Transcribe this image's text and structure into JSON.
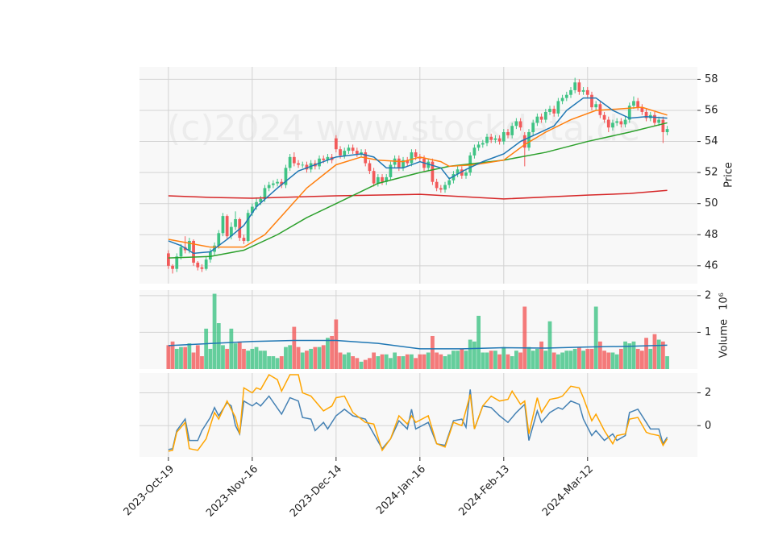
{
  "chart_data": {
    "type": "candlestick",
    "watermark": "(c)2024 www.stockdata.de",
    "ylabel": "Price",
    "xlim": [
      -6.9,
      126.2
    ],
    "xticks": [
      {
        "value": 0,
        "label": "2023-Oct-19"
      },
      {
        "value": 20,
        "label": "2023-Nov-16"
      },
      {
        "value": 40,
        "label": "2023-Dec-14"
      },
      {
        "value": 60,
        "label": "2024-Jan-16"
      },
      {
        "value": 80,
        "label": "2024-Feb-13"
      },
      {
        "value": 100,
        "label": "2024-Mar-12"
      }
    ],
    "ylim": [
      44.85,
      58.8
    ],
    "yticks": [
      46,
      48,
      50,
      52,
      54,
      56,
      58
    ],
    "grid": true,
    "up_color": "#3fc384",
    "down_color": "#f25a5a",
    "open": [
      46.8,
      46.0,
      45.8,
      46.6,
      47.2,
      47.0,
      47.6,
      46.2,
      45.9,
      45.8,
      46.4,
      46.9,
      47.3,
      48.1,
      49.2,
      47.9,
      48.5,
      49.0,
      47.8,
      47.6,
      49.4,
      49.8,
      50.1,
      50.3,
      51.0,
      51.2,
      51.3,
      51.4,
      51.2,
      52.3,
      53.0,
      52.6,
      52.5,
      52.5,
      52.2,
      52.6,
      52.4,
      52.9,
      52.8,
      53.0,
      54.2,
      53.5,
      53.1,
      53.4,
      53.6,
      53.4,
      53.2,
      53.3,
      52.6,
      52.1,
      51.3,
      51.7,
      51.4,
      51.7,
      52.5,
      52.9,
      52.3,
      52.8,
      52.6,
      53.3,
      53.0,
      52.9,
      52.3,
      52.7,
      51.4,
      51.0,
      50.9,
      51.2,
      51.5,
      51.9,
      52.2,
      51.8,
      52.0,
      53.1,
      53.6,
      53.8,
      53.9,
      54.3,
      54.1,
      54.2,
      54.0,
      54.6,
      54.4,
      55.0,
      55.3,
      54.4,
      53.6,
      54.6,
      55.2,
      55.6,
      55.4,
      55.9,
      56.1,
      55.8,
      56.6,
      56.8,
      57.0,
      57.3,
      57.8,
      57.2,
      57.3,
      57.0,
      56.2,
      56.4,
      55.7,
      55.4,
      54.9,
      55.2,
      55.3,
      55.1,
      55.4,
      56.3,
      56.6,
      56.2,
      55.9,
      55.5,
      55.7,
      55.2,
      55.4,
      54.6
    ],
    "high": [
      47.0,
      46.1,
      46.8,
      47.4,
      47.9,
      47.8,
      47.7,
      46.3,
      46.1,
      46.6,
      47.1,
      47.5,
      48.3,
      49.4,
      49.3,
      48.8,
      49.5,
      49.1,
      48.0,
      49.6,
      50.0,
      50.4,
      50.5,
      51.2,
      51.4,
      51.5,
      51.6,
      51.6,
      52.5,
      53.2,
      53.3,
      52.8,
      52.7,
      52.7,
      52.8,
      52.8,
      53.1,
      53.1,
      53.2,
      53.2,
      54.4,
      53.7,
      53.6,
      53.8,
      53.8,
      53.6,
      53.5,
      53.5,
      52.8,
      52.3,
      51.9,
      51.9,
      51.9,
      52.7,
      53.1,
      53.1,
      53.0,
      53.0,
      53.5,
      53.5,
      53.2,
      53.1,
      52.9,
      52.9,
      51.6,
      51.2,
      51.4,
      51.7,
      52.1,
      52.4,
      52.4,
      52.2,
      53.3,
      53.8,
      54.0,
      54.1,
      54.5,
      54.5,
      54.4,
      54.4,
      54.8,
      54.8,
      55.2,
      55.5,
      55.5,
      54.6,
      54.8,
      55.4,
      55.8,
      55.8,
      56.1,
      56.3,
      56.3,
      56.8,
      57.0,
      57.2,
      57.5,
      58.1,
      58.0,
      57.5,
      57.5,
      57.2,
      56.6,
      56.6,
      55.9,
      55.6,
      55.4,
      55.5,
      55.5,
      55.6,
      56.5,
      56.9,
      56.8,
      56.4,
      56.1,
      55.9,
      55.9,
      55.6,
      55.6,
      55.0
    ],
    "low": [
      45.8,
      45.5,
      45.6,
      46.4,
      46.8,
      46.8,
      46.0,
      45.7,
      45.6,
      45.7,
      46.2,
      46.7,
      47.1,
      47.9,
      47.7,
      47.7,
      48.3,
      47.6,
      47.4,
      47.5,
      49.2,
      49.6,
      49.9,
      50.1,
      50.8,
      51.0,
      51.1,
      51.0,
      51.0,
      52.1,
      52.4,
      52.3,
      52.3,
      52.0,
      52.0,
      52.2,
      52.2,
      52.6,
      52.6,
      52.6,
      53.3,
      52.9,
      52.9,
      53.2,
      53.2,
      53.0,
      53.0,
      52.4,
      51.9,
      51.1,
      51.1,
      51.2,
      51.2,
      51.5,
      52.3,
      52.1,
      52.1,
      52.4,
      52.4,
      52.8,
      52.7,
      52.1,
      52.1,
      51.2,
      50.8,
      50.7,
      50.7,
      51.0,
      51.3,
      51.7,
      51.6,
      51.6,
      51.8,
      52.9,
      53.4,
      53.6,
      53.7,
      53.9,
      53.9,
      53.8,
      53.8,
      54.2,
      54.2,
      54.8,
      54.7,
      52.4,
      53.4,
      54.4,
      55.0,
      55.2,
      55.2,
      55.7,
      55.6,
      55.6,
      56.4,
      56.6,
      56.8,
      57.1,
      57.0,
      57.0,
      56.8,
      56.0,
      56.0,
      55.5,
      55.2,
      54.6,
      54.7,
      55.0,
      54.9,
      54.9,
      55.2,
      56.1,
      56.0,
      55.7,
      55.3,
      55.3,
      55.0,
      55.0,
      53.9,
      54.4
    ],
    "close": [
      46.0,
      45.8,
      46.6,
      47.2,
      47.0,
      47.6,
      46.2,
      45.9,
      45.8,
      46.4,
      46.9,
      47.3,
      48.1,
      49.2,
      47.9,
      48.5,
      49.0,
      47.8,
      47.6,
      49.4,
      49.8,
      50.1,
      50.3,
      51.0,
      51.2,
      51.3,
      51.4,
      51.2,
      52.3,
      53.0,
      52.6,
      52.5,
      52.5,
      52.2,
      52.6,
      52.4,
      52.9,
      52.8,
      53.0,
      52.8,
      53.5,
      53.1,
      53.4,
      53.6,
      53.4,
      53.2,
      53.3,
      52.6,
      52.1,
      51.3,
      51.7,
      51.4,
      51.7,
      52.5,
      52.9,
      52.3,
      52.8,
      52.6,
      53.3,
      53.0,
      52.9,
      52.3,
      52.7,
      51.4,
      51.0,
      50.9,
      51.2,
      51.5,
      51.9,
      52.2,
      51.8,
      52.0,
      53.1,
      53.6,
      53.8,
      53.9,
      54.3,
      54.1,
      54.2,
      54.0,
      54.6,
      54.4,
      55.0,
      55.3,
      54.9,
      53.6,
      54.6,
      55.2,
      55.6,
      55.4,
      55.9,
      56.1,
      55.8,
      56.6,
      56.8,
      57.0,
      57.3,
      57.8,
      57.2,
      57.3,
      57.0,
      56.2,
      56.4,
      55.7,
      55.4,
      54.9,
      55.2,
      55.3,
      55.1,
      55.4,
      56.3,
      56.6,
      56.2,
      55.9,
      55.5,
      55.7,
      55.2,
      55.4,
      54.6,
      54.8
    ],
    "series": [
      {
        "color": "#d62728",
        "x": [
          0,
          10,
          20,
          40,
          60,
          80,
          100,
          110,
          119
        ],
        "values": [
          50.5,
          50.4,
          50.35,
          50.5,
          50.6,
          50.3,
          50.55,
          50.65,
          50.85
        ]
      },
      {
        "color": "#2ca02c",
        "x": [
          0,
          10,
          18,
          26,
          33,
          40,
          50,
          60,
          67,
          80,
          90,
          100,
          110,
          119
        ],
        "values": [
          46.5,
          46.6,
          47.0,
          48.0,
          49.1,
          50.0,
          51.3,
          52.0,
          52.4,
          52.8,
          53.3,
          54.0,
          54.6,
          55.2
        ]
      },
      {
        "color": "#ff7f0e",
        "x": [
          0,
          4,
          10,
          18,
          23,
          28,
          33,
          40,
          46,
          50,
          56,
          60,
          65,
          67,
          73,
          80,
          85,
          90,
          96,
          102,
          108,
          113,
          119
        ],
        "values": [
          47.7,
          47.5,
          47.2,
          47.2,
          48.0,
          49.5,
          51.0,
          52.5,
          53.0,
          52.8,
          52.7,
          53.0,
          52.7,
          52.4,
          52.5,
          52.8,
          53.8,
          54.6,
          55.4,
          56.0,
          56.1,
          56.2,
          55.7
        ]
      },
      {
        "color": "#1f77b4",
        "x": [
          0,
          3,
          6,
          10,
          14,
          18,
          21,
          26,
          31,
          35,
          40,
          46,
          49,
          52,
          56,
          60,
          65,
          67,
          71,
          75,
          80,
          84,
          88,
          92,
          95,
          99,
          102,
          106,
          110,
          114,
          119
        ],
        "values": [
          47.6,
          47.3,
          46.8,
          46.9,
          47.7,
          48.6,
          49.8,
          51.0,
          52.1,
          52.5,
          53.0,
          53.2,
          53.0,
          52.3,
          52.3,
          52.7,
          52.3,
          51.6,
          52.2,
          52.7,
          53.2,
          54.0,
          54.5,
          55.0,
          56.0,
          56.8,
          56.8,
          56.0,
          55.5,
          55.6,
          55.5
        ]
      }
    ],
    "volume": {
      "type": "bar",
      "ylabel": "Volume",
      "offset_text": "10⁶",
      "ylim": [
        0,
        2.15
      ],
      "yticks": [
        1,
        2
      ],
      "values": [
        0.65,
        0.75,
        0.55,
        0.6,
        0.6,
        0.7,
        0.45,
        0.65,
        0.35,
        1.1,
        0.55,
        2.05,
        1.25,
        0.65,
        0.55,
        1.1,
        0.7,
        0.75,
        0.55,
        0.5,
        0.55,
        0.6,
        0.5,
        0.5,
        0.35,
        0.35,
        0.3,
        0.35,
        0.6,
        0.65,
        1.15,
        0.6,
        0.45,
        0.5,
        0.55,
        0.6,
        0.6,
        0.65,
        0.85,
        0.9,
        1.35,
        0.45,
        0.4,
        0.45,
        0.35,
        0.3,
        0.2,
        0.25,
        0.3,
        0.45,
        0.35,
        0.4,
        0.4,
        0.3,
        0.45,
        0.35,
        0.35,
        0.4,
        0.4,
        0.3,
        0.4,
        0.4,
        0.45,
        0.9,
        0.45,
        0.4,
        0.35,
        0.4,
        0.5,
        0.5,
        0.55,
        0.5,
        0.8,
        0.75,
        1.45,
        0.45,
        0.45,
        0.5,
        0.5,
        0.4,
        0.6,
        0.4,
        0.35,
        0.5,
        0.45,
        1.7,
        0.6,
        0.5,
        0.55,
        0.75,
        0.5,
        1.3,
        0.45,
        0.4,
        0.45,
        0.5,
        0.5,
        0.55,
        0.6,
        0.5,
        0.55,
        0.55,
        1.7,
        0.75,
        0.5,
        0.45,
        0.45,
        0.4,
        0.55,
        0.75,
        0.7,
        0.75,
        0.55,
        0.5,
        0.85,
        0.55,
        0.95,
        0.8,
        0.75,
        0.35
      ],
      "series": [
        {
          "color": "#1f77b4",
          "x": [
            0,
            20,
            30,
            40,
            50,
            60,
            70,
            80,
            90,
            100,
            110,
            119
          ],
          "values": [
            0.64,
            0.75,
            0.78,
            0.78,
            0.7,
            0.55,
            0.55,
            0.58,
            0.57,
            0.6,
            0.62,
            0.65
          ]
        }
      ]
    },
    "oscillator": {
      "type": "line",
      "ylim": [
        -1.9,
        3.2
      ],
      "yticks": [
        0,
        2
      ],
      "series": [
        {
          "color": "#4682b4",
          "x": [
            0,
            1,
            2,
            4,
            5,
            7,
            8,
            10,
            11,
            12,
            14,
            15,
            16,
            17,
            18,
            20,
            21,
            22,
            24,
            27,
            29,
            31,
            32,
            34,
            35,
            37,
            38,
            40,
            42,
            44,
            47,
            49,
            51,
            53,
            55,
            57,
            58,
            59,
            62,
            64,
            66,
            68,
            70,
            71,
            72,
            73,
            75,
            77,
            79,
            81,
            83,
            85,
            86,
            88,
            89,
            91,
            93,
            94,
            96,
            98,
            99,
            101,
            102,
            104,
            106,
            107,
            109,
            110,
            112,
            114,
            115,
            117,
            118,
            119
          ],
          "values": [
            -1.45,
            -1.4,
            -0.3,
            0.4,
            -0.9,
            -0.9,
            -0.3,
            0.5,
            1.1,
            0.6,
            1.4,
            1.2,
            0.0,
            -0.5,
            1.5,
            1.2,
            1.4,
            1.2,
            1.8,
            0.7,
            1.7,
            1.5,
            0.5,
            0.4,
            -0.3,
            0.2,
            -0.2,
            0.6,
            1.0,
            0.6,
            0.4,
            -0.5,
            -1.4,
            -0.8,
            0.3,
            -0.2,
            1.0,
            -0.2,
            0.2,
            -1.1,
            -1.2,
            0.3,
            0.4,
            -0.1,
            2.2,
            -0.2,
            1.2,
            1.1,
            0.6,
            0.2,
            0.8,
            1.3,
            -0.9,
            0.9,
            0.2,
            0.8,
            1.1,
            1.0,
            1.5,
            1.3,
            0.4,
            -0.6,
            -0.3,
            -0.9,
            -0.5,
            -0.9,
            -0.6,
            0.8,
            1.0,
            0.2,
            -0.2,
            -0.2,
            -1.1,
            -0.7
          ]
        },
        {
          "color": "#ffa500",
          "x": [
            0,
            1,
            2,
            4,
            5,
            7,
            9,
            11,
            12,
            14,
            16,
            17,
            18,
            20,
            21,
            22,
            24,
            26,
            27,
            29,
            31,
            32,
            34,
            35,
            37,
            39,
            40,
            42,
            44,
            47,
            49,
            51,
            53,
            55,
            57,
            58,
            59,
            62,
            64,
            66,
            68,
            70,
            72,
            73,
            75,
            77,
            79,
            81,
            82,
            84,
            85,
            86,
            88,
            89,
            91,
            93,
            94,
            96,
            98,
            99,
            101,
            102,
            104,
            106,
            107,
            109,
            110,
            112,
            114,
            115,
            117,
            118,
            119
          ],
          "values": [
            -1.55,
            -1.5,
            -0.4,
            0.2,
            -1.4,
            -1.5,
            -0.8,
            0.8,
            0.4,
            1.5,
            0.5,
            -0.5,
            2.3,
            2.0,
            2.3,
            2.2,
            3.1,
            2.8,
            2.1,
            3.1,
            3.1,
            2.0,
            1.8,
            1.5,
            0.9,
            1.2,
            1.7,
            1.8,
            0.8,
            0.2,
            0.1,
            -1.5,
            -0.8,
            0.6,
            0.1,
            0.6,
            0.2,
            0.6,
            -1.1,
            -1.3,
            0.2,
            0.0,
            1.9,
            -0.2,
            1.2,
            1.8,
            1.5,
            1.6,
            2.1,
            1.3,
            1.5,
            -0.5,
            1.7,
            0.8,
            1.6,
            1.7,
            1.8,
            2.4,
            2.3,
            1.7,
            0.3,
            0.7,
            -0.3,
            -1.1,
            -0.6,
            -0.5,
            0.4,
            0.5,
            -0.4,
            -0.5,
            -0.6,
            -1.2,
            -0.8
          ]
        }
      ]
    }
  }
}
